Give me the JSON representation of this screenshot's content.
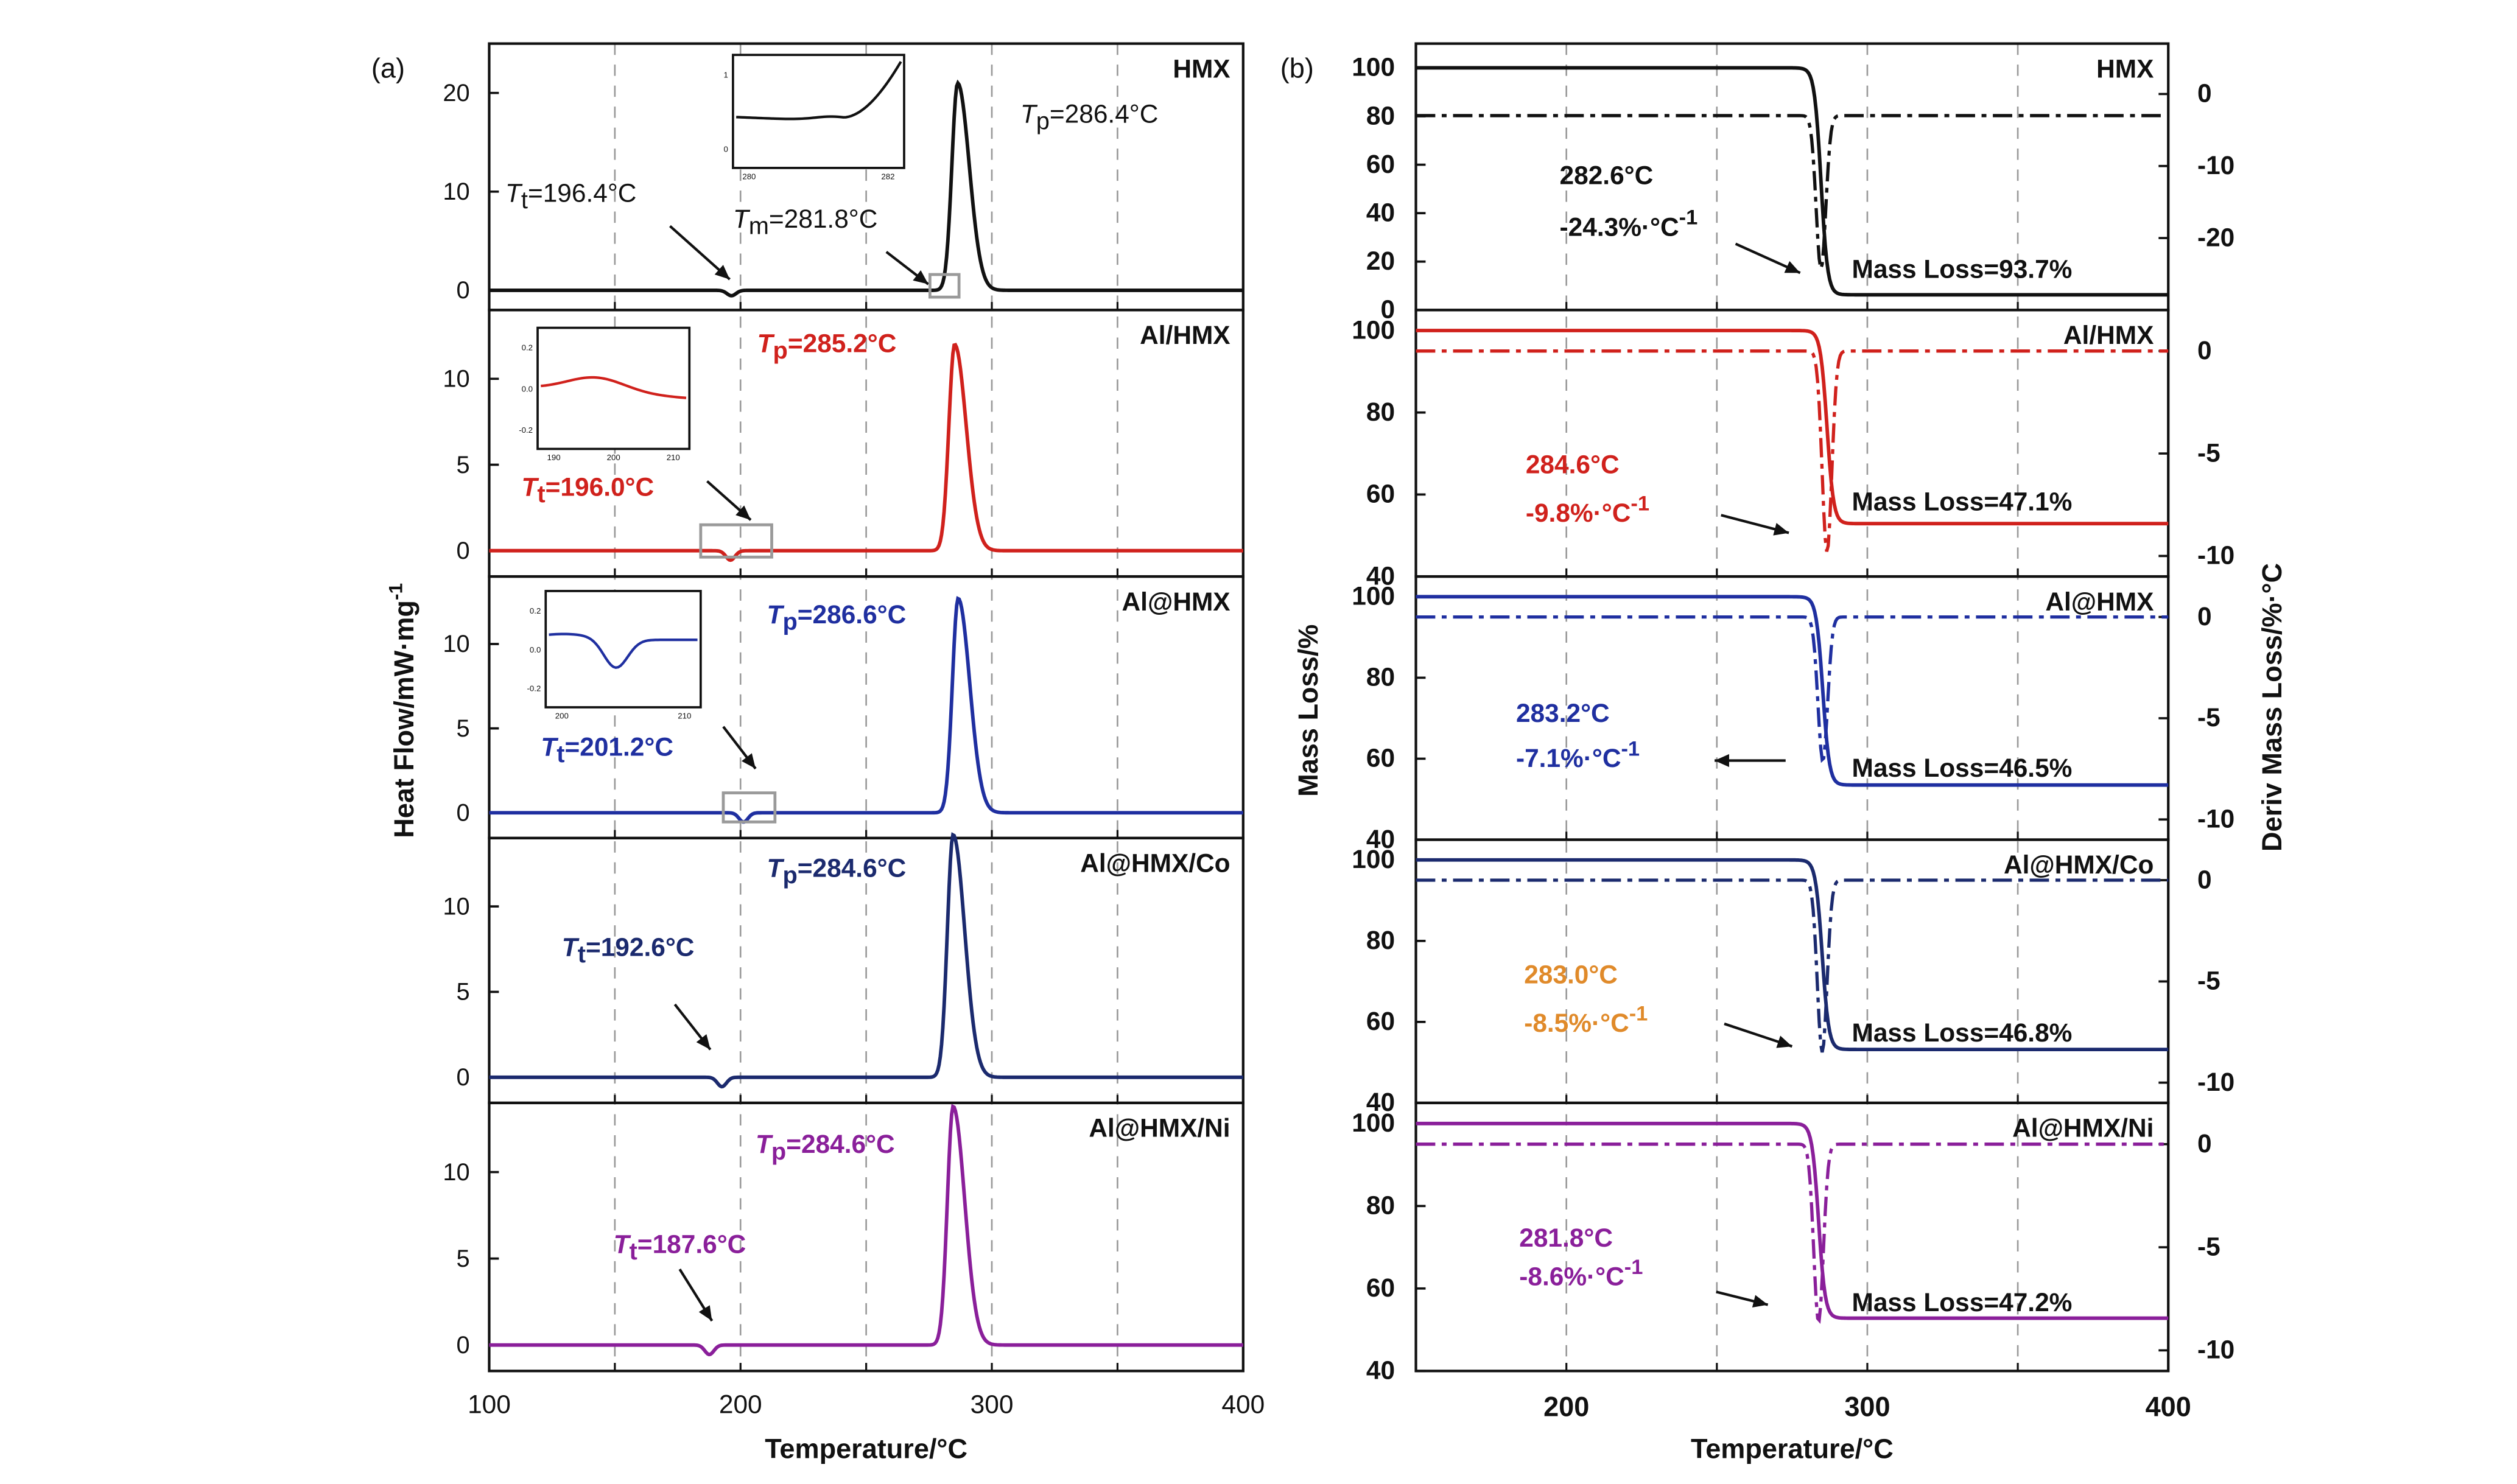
{
  "colors": {
    "black": "#111111",
    "red": "#d0211c",
    "blue": "#1f2fa0",
    "navy": "#1b2a6e",
    "orange": "#e08a2a",
    "purple": "#8a1f9a",
    "grid": "#9a9a9a",
    "box": "#9a9a9a"
  },
  "panel_a": {
    "label": "(a)",
    "xlabel": "Temperature/°C",
    "ylabel": "Heat Flow/mW·mg-1",
    "ylabel_main": "Heat Flow/mW·mg",
    "ylabel_sup": "-1",
    "xticks": [
      100,
      200,
      300,
      400
    ],
    "xlim": [
      100,
      400
    ],
    "vlines": [
      150,
      200,
      250,
      300,
      350
    ]
  },
  "panel_b": {
    "label": "(b)",
    "xlabel": "Temperature/°C",
    "ylabel_left": "Mass Loss/%",
    "ylabel_right": "Deriv Mass Loss/%·°C",
    "xticks": [
      200,
      300,
      400
    ],
    "xlim": [
      150,
      400
    ],
    "vlines": [
      200,
      250,
      300,
      350
    ]
  },
  "chart_data": [
    {
      "type": "line",
      "panel": "a",
      "xlabel": "Temperature/°C",
      "ylabel": "Heat Flow/mW·mg-1",
      "series": [
        {
          "name": "HMX",
          "color_key": "black",
          "ylim": [
            -2,
            25
          ],
          "yticks": [
            0,
            10,
            20
          ],
          "peak_x": 286.4,
          "peak_y": 21,
          "transition_x": 196.4,
          "texts": {
            "tp_sym": "T",
            "tp_sub": "p",
            "tp_val": "=286.4°C",
            "tt_sym": "T",
            "tt_sub": "t",
            "tt_val": "=196.4°C",
            "tm_sym": "T",
            "tm_sub": "m",
            "tm_val": "=281.8°C"
          }
        },
        {
          "name": "Al/HMX",
          "color_key": "red",
          "ylim": [
            -1.5,
            14
          ],
          "yticks": [
            0,
            5,
            10
          ],
          "peak_x": 285.2,
          "peak_y": 12,
          "transition_x": 196.0,
          "texts": {
            "tp_sym": "T",
            "tp_sub": "p",
            "tp_val": "=285.2°C",
            "tt_sym": "T",
            "tt_sub": "t",
            "tt_val": "=196.0°C"
          }
        },
        {
          "name": "Al@HMX",
          "color_key": "blue",
          "ylim": [
            -1.5,
            14
          ],
          "yticks": [
            0,
            5,
            10
          ],
          "peak_x": 286.6,
          "peak_y": 12.7,
          "transition_x": 201.2,
          "texts": {
            "tp_sym": "T",
            "tp_sub": "p",
            "tp_val": "=286.6°C",
            "tt_sym": "T",
            "tt_sub": "t",
            "tt_val": "=201.2°C"
          }
        },
        {
          "name": "Al@HMX/Co",
          "color_key": "navy",
          "ylim": [
            -1.5,
            14
          ],
          "yticks": [
            0,
            5,
            10
          ],
          "peak_x": 284.6,
          "peak_y": 14.2,
          "transition_x": 192.6,
          "texts": {
            "tp_sym": "T",
            "tp_sub": "p",
            "tp_val": "=284.6°C",
            "tt_sym": "T",
            "tt_sub": "t",
            "tt_val": "=192.6°C"
          }
        },
        {
          "name": "Al@HMX/Ni",
          "color_key": "purple",
          "ylim": [
            -1.5,
            14
          ],
          "yticks": [
            0,
            5,
            10
          ],
          "peak_x": 284.6,
          "peak_y": 13.8,
          "transition_x": 187.6,
          "texts": {
            "tp_sym": "T",
            "tp_sub": "p",
            "tp_val": "=284.6°C",
            "tt_sym": "T",
            "tt_sub": "t",
            "tt_val": "=187.6°C"
          }
        }
      ]
    },
    {
      "type": "line",
      "panel": "b",
      "xlabel": "Temperature/°C",
      "ylabel": "Mass Loss/%",
      "ylabel_right": "Deriv Mass Loss/%·°C",
      "series": [
        {
          "name": "HMX",
          "color_key": "black",
          "ylim": [
            0,
            110
          ],
          "yticks": [
            0,
            20,
            40,
            60,
            80,
            100
          ],
          "ylim_right": [
            -30,
            7
          ],
          "yticks_right": [
            0,
            -10,
            -20
          ],
          "onset_x": 282.6,
          "residual": 6.3,
          "deriv_offset": -3,
          "deriv_min": -24.3,
          "texts": {
            "temp": "282.6°C",
            "rate_main": "-24.3%·°C",
            "rate_sup": "-1",
            "mass_loss": "Mass Loss=93.7%"
          }
        },
        {
          "name": "Al/HMX",
          "color_key": "red",
          "ylim": [
            40,
            105
          ],
          "yticks": [
            40,
            60,
            80,
            100
          ],
          "ylim_right": [
            -11,
            2
          ],
          "yticks_right": [
            0,
            -5,
            -10
          ],
          "onset_x": 284.6,
          "residual": 52.9,
          "deriv_offset": 0,
          "deriv_min": -9.8,
          "texts": {
            "temp": "284.6°C",
            "rate_main": "-9.8%·°C",
            "rate_sup": "-1",
            "mass_loss": "Mass Loss=47.1%"
          }
        },
        {
          "name": "Al@HMX",
          "color_key": "blue",
          "ylim": [
            40,
            105
          ],
          "yticks": [
            40,
            60,
            80,
            100
          ],
          "ylim_right": [
            -11,
            2
          ],
          "yticks_right": [
            0,
            -5,
            -10
          ],
          "onset_x": 283.2,
          "residual": 53.5,
          "deriv_offset": 0,
          "deriv_min": -7.1,
          "texts": {
            "temp": "283.2°C",
            "rate_main": "-7.1%·°C",
            "rate_sup": "-1",
            "mass_loss": "Mass Loss=46.5%"
          }
        },
        {
          "name": "Al@HMX/Co",
          "color_key": "navy",
          "ylim": [
            40,
            105
          ],
          "yticks": [
            40,
            60,
            80,
            100
          ],
          "ylim_right": [
            -11,
            2
          ],
          "yticks_right": [
            0,
            -5,
            -10
          ],
          "onset_x": 283.0,
          "residual": 53.2,
          "deriv_offset": 0,
          "deriv_min": -8.5,
          "texts": {
            "temp": "283.0°C",
            "rate_main": "-8.5%·°C",
            "rate_sup": "-1",
            "mass_loss": "Mass Loss=46.8%"
          }
        },
        {
          "name": "Al@HMX/Ni",
          "color_key": "purple",
          "ylim": [
            40,
            105
          ],
          "yticks": [
            40,
            60,
            80,
            100
          ],
          "ylim_right": [
            -11,
            2
          ],
          "yticks_right": [
            0,
            -5,
            -10
          ],
          "onset_x": 281.8,
          "residual": 52.8,
          "deriv_offset": 0,
          "deriv_min": -8.6,
          "texts": {
            "temp": "281.8°C",
            "rate_main": "-8.6%·°C",
            "rate_sup": "-1",
            "mass_loss": "Mass Loss=47.2%"
          }
        }
      ]
    }
  ]
}
